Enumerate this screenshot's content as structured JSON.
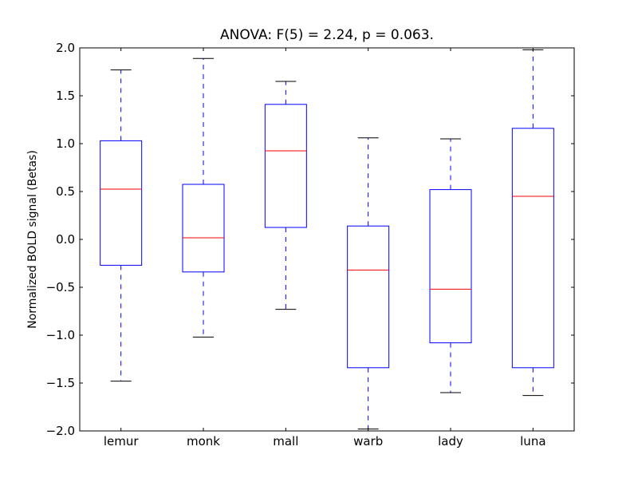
{
  "chart_data": {
    "type": "boxplot",
    "title": "ANOVA: F(5) = 2.24, p = 0.063.",
    "xlabel": "",
    "ylabel": "Normalized BOLD signal (Betas)",
    "ylim": [
      -2.0,
      2.0
    ],
    "yticks": [
      "−2.0",
      "−1.5",
      "−1.0",
      "−0.5",
      "0.0",
      "0.5",
      "1.0",
      "1.5",
      "2.0"
    ],
    "ytick_values": [
      -2.0,
      -1.5,
      -1.0,
      -0.5,
      0.0,
      0.5,
      1.0,
      1.5,
      2.0
    ],
    "grid": false,
    "categories": [
      "lemur",
      "monk",
      "mall",
      "warb",
      "lady",
      "luna"
    ],
    "boxes": [
      {
        "whisker_low": -1.48,
        "q1": -0.27,
        "median": 0.525,
        "q3": 1.03,
        "whisker_high": 1.77
      },
      {
        "whisker_low": -1.02,
        "q1": -0.34,
        "median": 0.017,
        "q3": 0.575,
        "whisker_high": 1.89
      },
      {
        "whisker_low": -0.73,
        "q1": 0.125,
        "median": 0.925,
        "q3": 1.41,
        "whisker_high": 1.65
      },
      {
        "whisker_low": -1.98,
        "q1": -1.34,
        "median": -0.32,
        "q3": 0.14,
        "whisker_high": 1.06
      },
      {
        "whisker_low": -1.6,
        "q1": -1.08,
        "median": -0.52,
        "q3": 0.52,
        "whisker_high": 1.05
      },
      {
        "whisker_low": -1.63,
        "q1": -1.34,
        "median": 0.45,
        "q3": 1.16,
        "whisker_high": 1.98
      }
    ],
    "colors": {
      "box": "#0000ff",
      "median": "#ff0000",
      "cap": "#000000"
    }
  }
}
